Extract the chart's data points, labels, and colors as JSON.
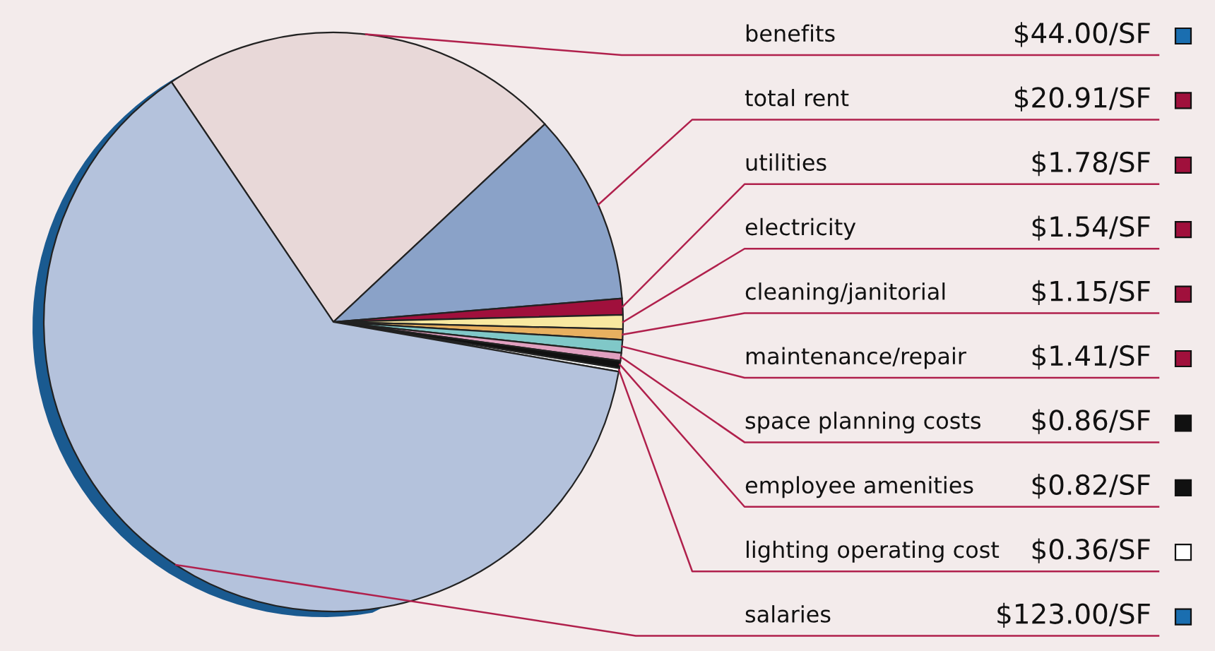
{
  "chart_data": {
    "type": "pie",
    "categories": [
      "benefits",
      "total rent",
      "utilities",
      "electricity",
      "cleaning/janitorial",
      "maintenance/repair",
      "space planning costs",
      "employee amenities",
      "lighting operating cost",
      "salaries"
    ],
    "values": [
      44.0,
      20.91,
      1.78,
      1.54,
      1.15,
      1.41,
      0.86,
      0.82,
      0.36,
      123.0
    ],
    "colors": [
      "#e8d8d8",
      "#8aa2c8",
      "#a0103c",
      "#f8e8a0",
      "#e8b060",
      "#80c8c8",
      "#e0a0c0",
      "#111111",
      "#ffffff",
      "#b4c2dc"
    ],
    "value_labels": [
      "$44.00/SF",
      "$20.91/SF",
      "$1.78/SF",
      "$1.54/SF",
      "$1.15/SF",
      "$1.41/SF",
      "$0.86/SF",
      "$0.82/SF",
      "$0.36/SF",
      "$123.00/SF"
    ]
  }
}
